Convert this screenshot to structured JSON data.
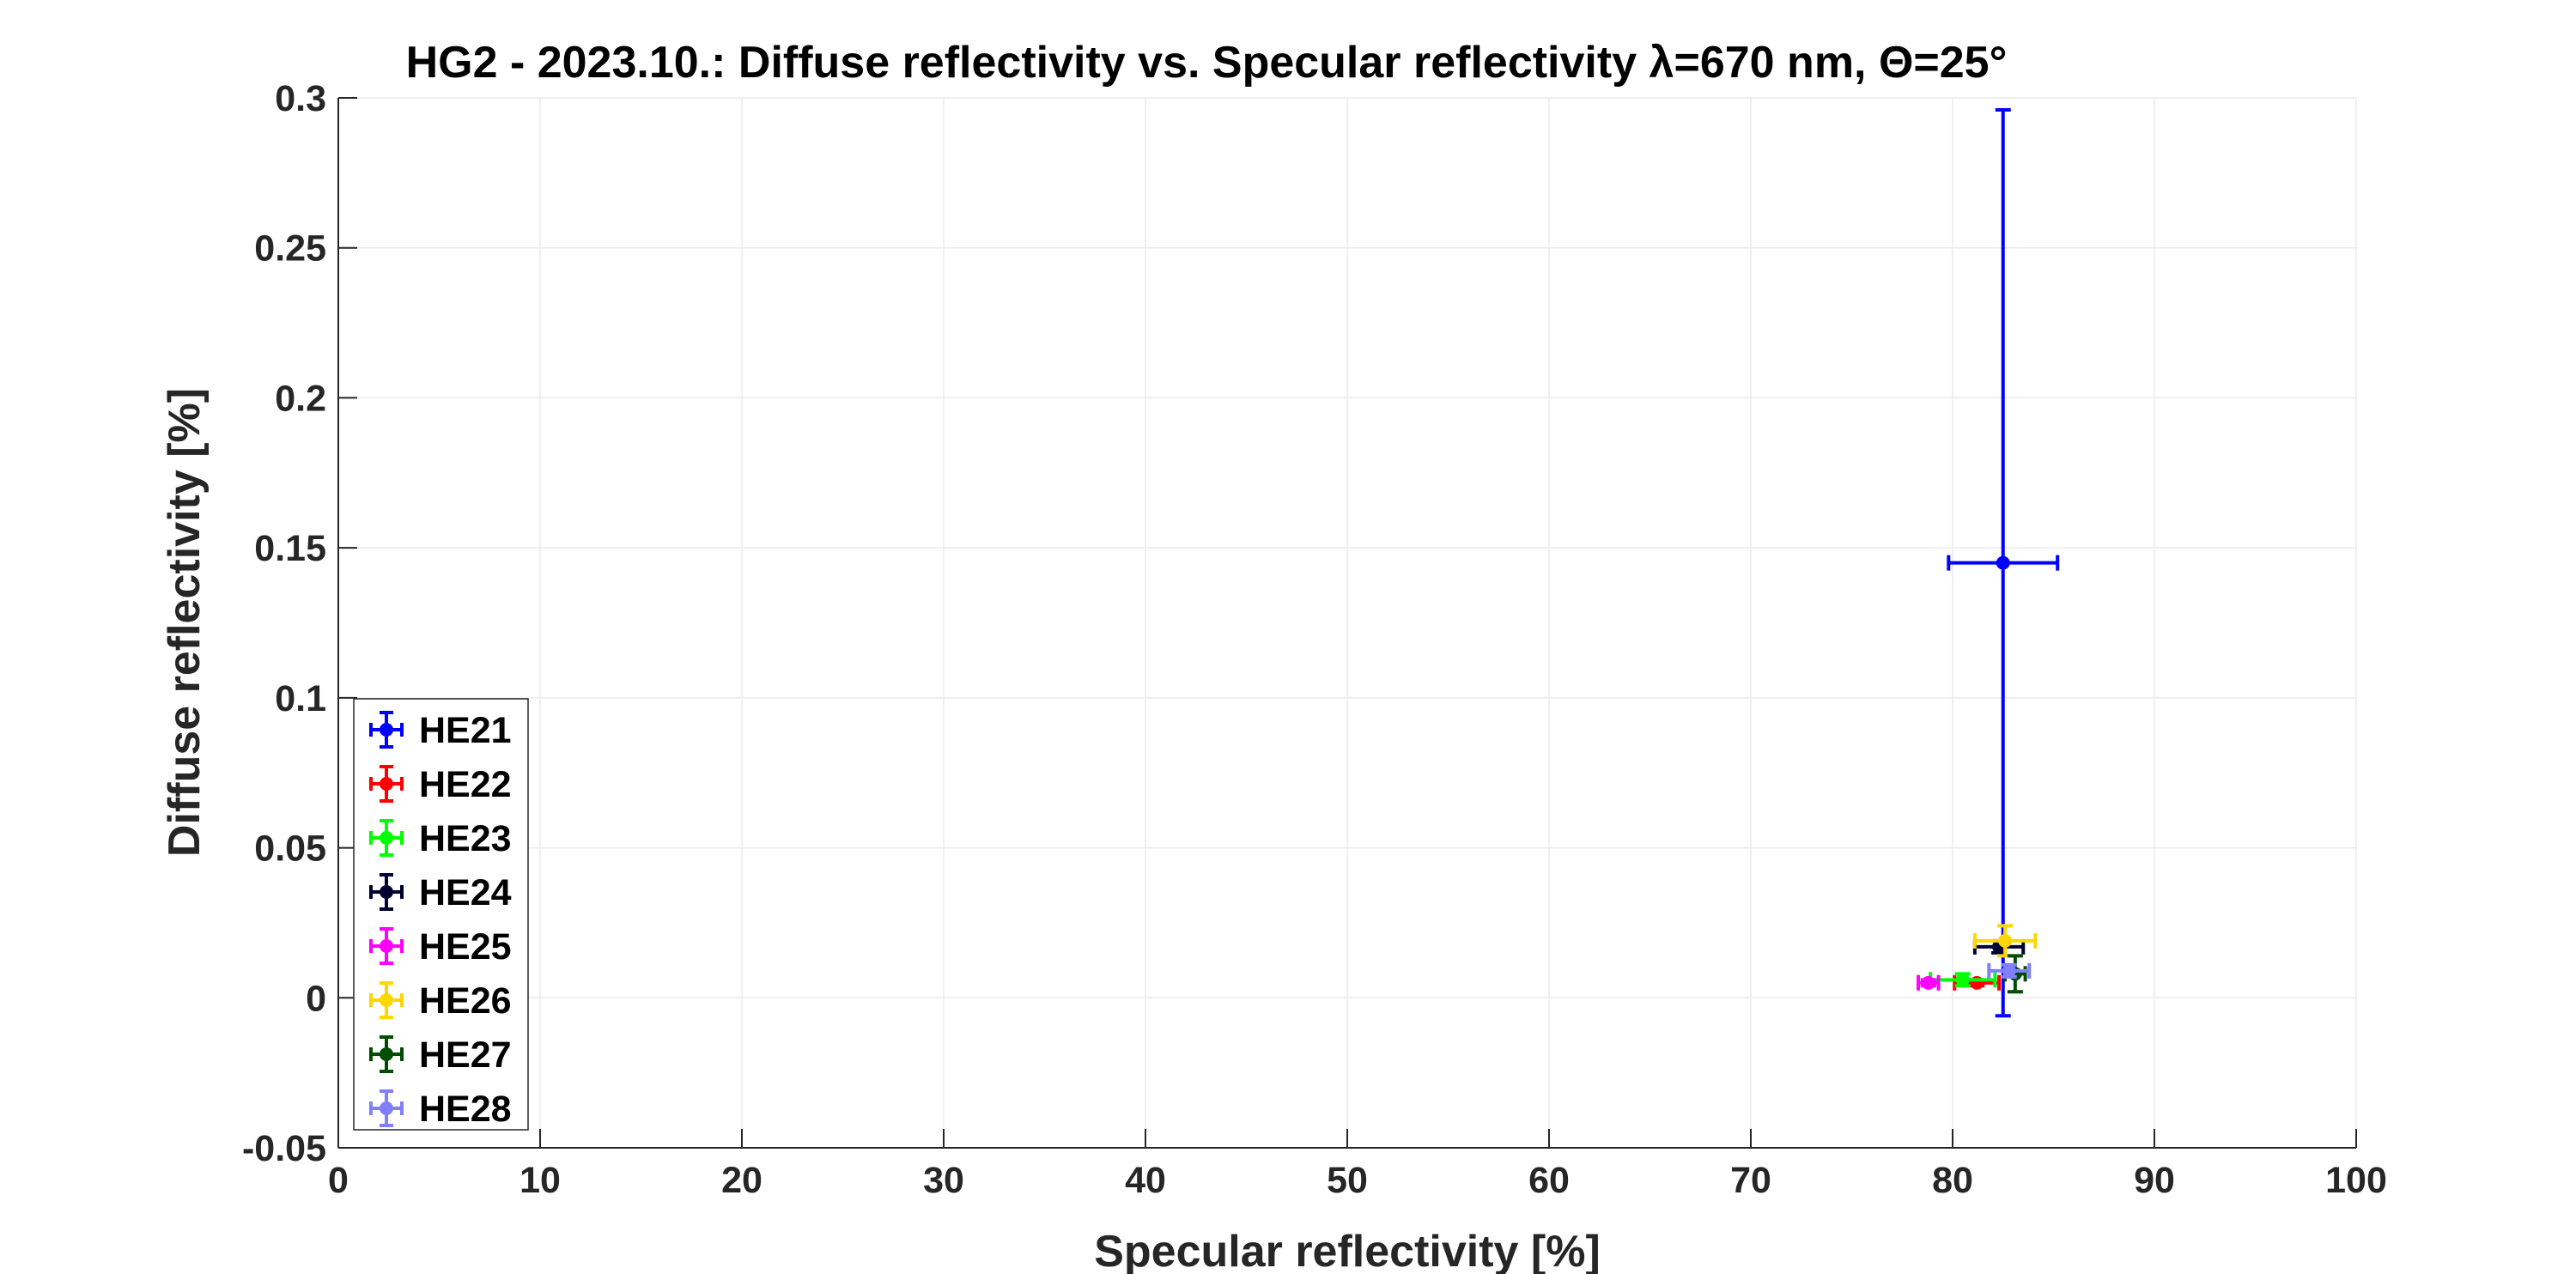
{
  "chart_data": {
    "type": "scatter",
    "title": "HG2 - 2023.10.: Diffuse reflectivity vs. Specular reflectivity λ=670 nm, Θ=25°",
    "xlabel": "Specular reflectivity [%]",
    "ylabel": "Diffuse reflectivity [%]",
    "xlim": [
      0,
      100
    ],
    "ylim": [
      -0.05,
      0.3
    ],
    "x_ticks": [
      0,
      10,
      20,
      30,
      40,
      50,
      60,
      70,
      80,
      90,
      100
    ],
    "x_tick_labels": [
      "0",
      "10",
      "20",
      "30",
      "40",
      "50",
      "60",
      "70",
      "80",
      "90",
      "100"
    ],
    "y_ticks": [
      -0.05,
      0,
      0.05,
      0.1,
      0.15,
      0.2,
      0.25,
      0.3
    ],
    "y_tick_labels": [
      "-0.05",
      "0",
      "0.05",
      "0.1",
      "0.15",
      "0.2",
      "0.25",
      "0.3"
    ],
    "grid": true,
    "legend_position": "bottom-left",
    "series": [
      {
        "name": "HE21",
        "color": "#0000ff",
        "x": 82.5,
        "y": 0.145,
        "xerr": 2.7,
        "yerr": 0.151
      },
      {
        "name": "HE22",
        "color": "#ff0000",
        "x": 81.2,
        "y": 0.005,
        "xerr": 1.1,
        "yerr": 0.001
      },
      {
        "name": "HE23",
        "color": "#00ff00",
        "x": 80.5,
        "y": 0.006,
        "xerr": 1.6,
        "yerr": 0.002
      },
      {
        "name": "HE24",
        "color": "#000033",
        "x": 82.3,
        "y": 0.017,
        "xerr": 1.2,
        "yerr": 0.002
      },
      {
        "name": "HE25",
        "color": "#ff00ff",
        "x": 78.8,
        "y": 0.005,
        "xerr": 0.5,
        "yerr": 0.001
      },
      {
        "name": "HE26",
        "color": "#ffd700",
        "x": 82.6,
        "y": 0.019,
        "xerr": 1.5,
        "yerr": 0.005
      },
      {
        "name": "HE27",
        "color": "#004d00",
        "x": 83.1,
        "y": 0.008,
        "xerr": 0.5,
        "yerr": 0.006
      },
      {
        "name": "HE28",
        "color": "#8080ff",
        "x": 82.8,
        "y": 0.009,
        "xerr": 1.0,
        "yerr": 0.002
      }
    ]
  }
}
